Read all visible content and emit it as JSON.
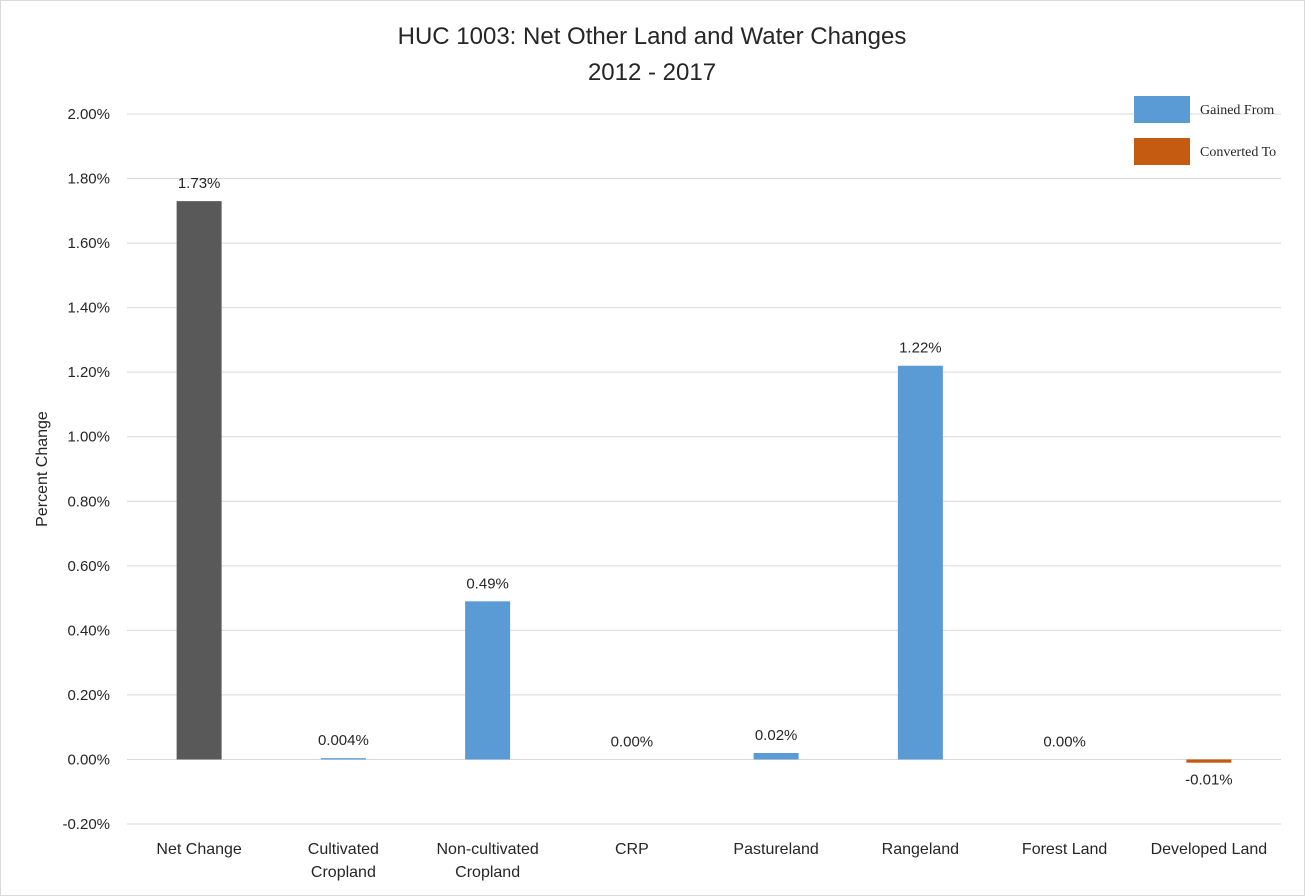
{
  "chart_data": {
    "type": "bar",
    "title_line1": "HUC 1003: Net Other Land and Water Changes",
    "title_line2": "2012 - 2017",
    "ylabel": "Percent Change",
    "xlabel": "",
    "ylim": [
      -0.2,
      2.0
    ],
    "yticks": [
      -0.2,
      0.0,
      0.2,
      0.4,
      0.6,
      0.8,
      1.0,
      1.2,
      1.4,
      1.6,
      1.8,
      2.0
    ],
    "ytick_labels": [
      "-0.20%",
      "0.00%",
      "0.20%",
      "0.40%",
      "0.60%",
      "0.80%",
      "1.00%",
      "1.20%",
      "1.40%",
      "1.60%",
      "1.80%",
      "2.00%"
    ],
    "grid": true,
    "legend_position": "top-right",
    "colors": {
      "net": "#595959",
      "gained": "#5b9bd5",
      "converted": "#c55a11",
      "grid": "#d9d9d9"
    },
    "legend": [
      {
        "name": "Gained From",
        "color": "#5b9bd5"
      },
      {
        "name": "Converted To",
        "color": "#c55a11"
      }
    ],
    "categories": [
      {
        "lines": [
          "Net Change"
        ],
        "value": 1.73,
        "label": "1.73%",
        "kind": "net"
      },
      {
        "lines": [
          "Cultivated",
          "Cropland"
        ],
        "value": 0.004,
        "label": "0.004%",
        "kind": "gained"
      },
      {
        "lines": [
          "Non-cultivated",
          "Cropland"
        ],
        "value": 0.49,
        "label": "0.49%",
        "kind": "gained"
      },
      {
        "lines": [
          "CRP"
        ],
        "value": 0.0,
        "label": "0.00%",
        "kind": "gained"
      },
      {
        "lines": [
          "Pastureland"
        ],
        "value": 0.02,
        "label": "0.02%",
        "kind": "gained"
      },
      {
        "lines": [
          "Rangeland"
        ],
        "value": 1.22,
        "label": "1.22%",
        "kind": "gained"
      },
      {
        "lines": [
          "Forest Land"
        ],
        "value": 0.0,
        "label": "0.00%",
        "kind": "gained"
      },
      {
        "lines": [
          "Developed Land"
        ],
        "value": -0.01,
        "label": "-0.01%",
        "kind": "converted"
      }
    ]
  }
}
